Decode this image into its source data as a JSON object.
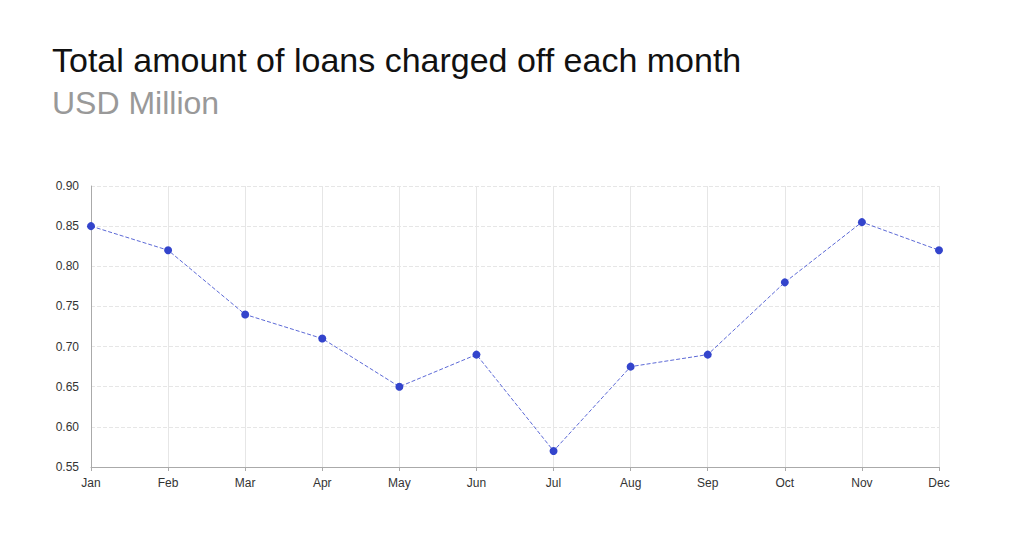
{
  "chart_data": {
    "type": "line",
    "title": "Total amount of loans charged off each month",
    "subtitle": "USD Million",
    "categories": [
      "Jan",
      "Feb",
      "Mar",
      "Apr",
      "May",
      "Jun",
      "Jul",
      "Aug",
      "Sep",
      "Oct",
      "Nov",
      "Dec"
    ],
    "values": [
      0.85,
      0.82,
      0.74,
      0.71,
      0.65,
      0.69,
      0.57,
      0.675,
      0.69,
      0.78,
      0.855,
      0.82
    ],
    "color": "#3344cc",
    "marker": "circle",
    "line_style": "dashed",
    "ylim": [
      0.55,
      0.9
    ],
    "yticks": [
      0.55,
      {
        "value": 0.6,
        "label": "0.60"
      },
      0.65,
      {
        "value": 0.7,
        "label": "0.70"
      },
      0.75,
      {
        "value": 0.8,
        "label": "0.80"
      },
      0.85,
      {
        "value": 0.9,
        "label": "0.90"
      }
    ],
    "grid": true
  }
}
